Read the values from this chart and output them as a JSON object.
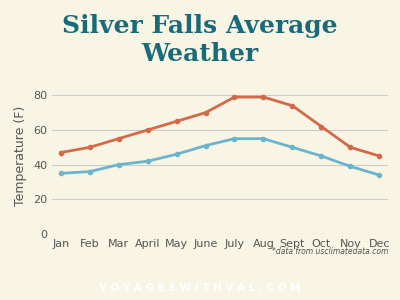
{
  "title": "Silver Falls Average\nWeather",
  "ylabel": "Temperature (F)",
  "months": [
    "Jan",
    "Feb",
    "Mar",
    "April",
    "May",
    "June",
    "July",
    "Aug",
    "Sept",
    "Oct",
    "Nov",
    "Dec"
  ],
  "high_temps": [
    47,
    50,
    55,
    60,
    65,
    70,
    79,
    79,
    74,
    62,
    50,
    45
  ],
  "low_temps": [
    35,
    36,
    40,
    42,
    46,
    51,
    55,
    55,
    50,
    45,
    39,
    34
  ],
  "high_color": "#d4694a",
  "low_color": "#6bb5cc",
  "bg_color": "#f8f5e4",
  "title_color": "#1a6b7a",
  "axis_color": "#555555",
  "footer_bg": "#2e7d8a",
  "footer_text": "V O Y A G E S W I T H V A L . C O M",
  "footer_color": "#ffffff",
  "source_text": "*data from usclimatedata.com",
  "ylim": [
    0,
    90
  ],
  "yticks": [
    0,
    20,
    40,
    60,
    80
  ],
  "grid_color": "#cccccc",
  "title_fontsize": 18,
  "label_fontsize": 9,
  "tick_fontsize": 8
}
